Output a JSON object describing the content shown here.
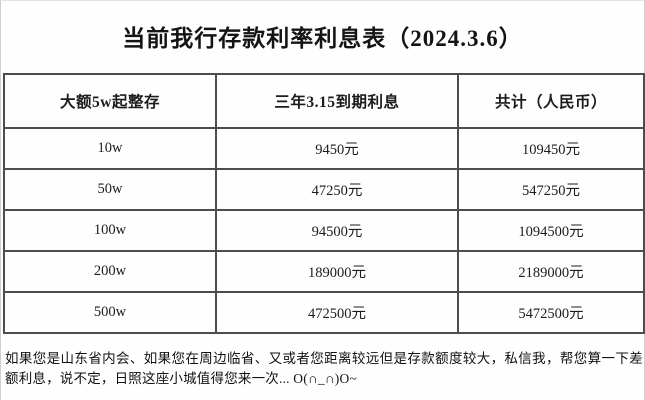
{
  "title": "当前我行存款利率利息表（2024.3.6）",
  "table": {
    "headers": [
      "大额5w起整存",
      "三年3.15到期利息",
      "共计（人民币）"
    ],
    "rows": [
      [
        "10w",
        "9450元",
        "109450元"
      ],
      [
        "50w",
        "47250元",
        "547250元"
      ],
      [
        "100w",
        "94500元",
        "1094500元"
      ],
      [
        "200w",
        "189000元",
        "2189000元"
      ],
      [
        "500w",
        "472500元",
        "5472500元"
      ]
    ]
  },
  "note": "如果您是山东省内会、如果您在周边临省、又或者您距离较远但是存款额度较大，私信我，帮您算一下差额利息，说不定，日照这座小城值得您来一次... O(∩_∩)O~",
  "colors": {
    "background": "#ffffff",
    "text": "#1a1a1a",
    "table_border": "#4d4d4d"
  }
}
